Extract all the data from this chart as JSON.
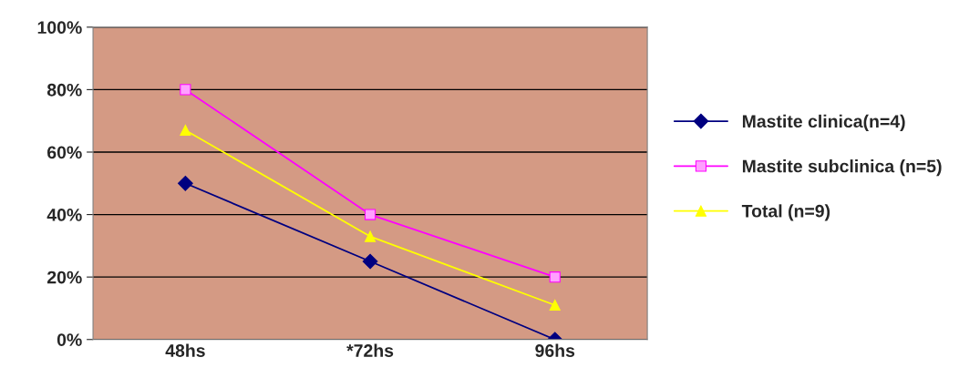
{
  "chart_data": {
    "type": "line",
    "categories": [
      "48hs",
      "*72hs",
      "96hs"
    ],
    "series": [
      {
        "name": "Mastite clinica(n=4)",
        "color": "#000080",
        "marker": "diamond",
        "values": [
          50,
          25,
          0
        ]
      },
      {
        "name": "Mastite subclinica (n=5)",
        "color": "#ff00ff",
        "marker": "square",
        "values": [
          80,
          40,
          20
        ]
      },
      {
        "name": "Total (n=9)",
        "color": "#ffff00",
        "marker": "triangle",
        "values": [
          67,
          33,
          11
        ]
      }
    ],
    "ylim": [
      0,
      100
    ],
    "yticks": [
      {
        "value": 0,
        "label": "0%"
      },
      {
        "value": 20,
        "label": "20%"
      },
      {
        "value": 40,
        "label": "40%"
      },
      {
        "value": 60,
        "label": "60%"
      },
      {
        "value": 80,
        "label": "80%"
      },
      {
        "value": 100,
        "label": "100%"
      }
    ],
    "grid": "y",
    "legend": "right",
    "line_style": "solid"
  }
}
